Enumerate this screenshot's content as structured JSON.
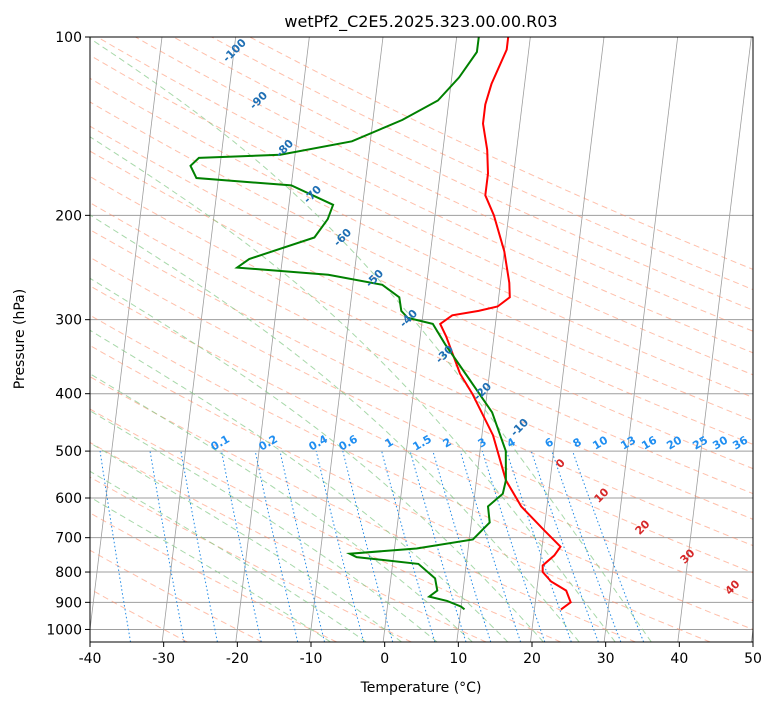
{
  "chart_data": {
    "type": "line",
    "chart_kind": "skew-T log-p diagram",
    "title": "wetPf2_C2E5.2025.323.00.00.R03",
    "xlabel": "Temperature (°C)",
    "ylabel": "Pressure (hPa)",
    "x_axis": {
      "range": [
        -40,
        50
      ],
      "ticks": [
        -40,
        -30,
        -20,
        -10,
        0,
        10,
        20,
        30,
        40,
        50
      ]
    },
    "y_axis": {
      "scale": "log",
      "range": [
        1050,
        100
      ],
      "ticks": [
        1000,
        900,
        800,
        700,
        600,
        500,
        400,
        300,
        200,
        100
      ]
    },
    "grid": true,
    "colors": {
      "temperature": "#ff0000",
      "dewpoint": "#008000",
      "isotherm": "#9e9e9e",
      "dry_adiabat": "#ff8a65",
      "moist_adiabat": "#81c784",
      "mixing_ratio": "#1e88e5",
      "grid": "#9e9e9e"
    },
    "series": [
      {
        "name": "Temperature",
        "points": [
          [
            23.6,
            925
          ],
          [
            24.8,
            900
          ],
          [
            24.0,
            860
          ],
          [
            21.8,
            830
          ],
          [
            20.5,
            800
          ],
          [
            20.4,
            780
          ],
          [
            21.8,
            750
          ],
          [
            22.5,
            725
          ],
          [
            20.0,
            680
          ],
          [
            16.5,
            620
          ],
          [
            14.0,
            560
          ],
          [
            11.5,
            470
          ],
          [
            8.0,
            400
          ],
          [
            6.0,
            370
          ],
          [
            3.5,
            320
          ],
          [
            2.5,
            305
          ],
          [
            4.0,
            295
          ],
          [
            7.5,
            290
          ],
          [
            10.0,
            285
          ],
          [
            11.5,
            275
          ],
          [
            11.2,
            260
          ],
          [
            10.0,
            230
          ],
          [
            8.0,
            200
          ],
          [
            6.5,
            185
          ],
          [
            6.5,
            170
          ],
          [
            6.0,
            155
          ],
          [
            5.0,
            140
          ],
          [
            5.0,
            130
          ],
          [
            5.5,
            120
          ],
          [
            7.0,
            105
          ],
          [
            7.0,
            100
          ]
        ]
      },
      {
        "name": "Dewpoint",
        "points": [
          [
            10.5,
            925
          ],
          [
            10.0,
            915
          ],
          [
            8.0,
            895
          ],
          [
            5.5,
            880
          ],
          [
            6.5,
            860
          ],
          [
            6.0,
            820
          ],
          [
            3.5,
            775
          ],
          [
            -5.0,
            755
          ],
          [
            -6.0,
            745
          ],
          [
            3.0,
            730
          ],
          [
            10.5,
            705
          ],
          [
            12.5,
            660
          ],
          [
            12.0,
            620
          ],
          [
            13.8,
            590
          ],
          [
            14.0,
            560
          ],
          [
            13.5,
            500
          ],
          [
            11.0,
            430
          ],
          [
            7.5,
            380
          ],
          [
            3.5,
            330
          ],
          [
            1.5,
            305
          ],
          [
            -2.0,
            298
          ],
          [
            -3.0,
            290
          ],
          [
            -3.5,
            275
          ],
          [
            -6.0,
            262
          ],
          [
            -13.5,
            252
          ],
          [
            -26.0,
            245
          ],
          [
            -24.5,
            237
          ],
          [
            -16.0,
            218
          ],
          [
            -14.5,
            203
          ],
          [
            -14.0,
            192
          ],
          [
            -20.0,
            178
          ],
          [
            -33.0,
            173
          ],
          [
            -34.0,
            165
          ],
          [
            -33.0,
            160
          ],
          [
            -22.0,
            158
          ],
          [
            -12.5,
            150
          ],
          [
            -6.0,
            138
          ],
          [
            -1.5,
            128
          ],
          [
            1.0,
            117
          ],
          [
            3.0,
            106
          ],
          [
            3.0,
            100
          ]
        ]
      }
    ],
    "background_lines": {
      "isotherms_c": [
        -110,
        -100,
        -90,
        -80,
        -70,
        -60,
        -50,
        -40,
        -30,
        -20,
        -10,
        0,
        10,
        20,
        30,
        40,
        50
      ],
      "dry_adiabats_c": [
        -30,
        -20,
        -10,
        0,
        10,
        20,
        30,
        40,
        50,
        60,
        70,
        80,
        90,
        100,
        110,
        120,
        130,
        140,
        150,
        160,
        170,
        180,
        190,
        200
      ],
      "moist_adiabats_c": [
        -10,
        -5,
        0,
        5,
        10,
        15,
        20,
        25,
        30,
        35
      ],
      "mixing_ratios_gkg": [
        "0.1",
        "0.2",
        "0.4",
        "0.6",
        "1",
        "1.5",
        "2",
        "3",
        "4",
        "6",
        "8",
        "10",
        "13",
        "16",
        "20",
        "25",
        "30",
        "36"
      ]
    },
    "annotations": {
      "dry_adiabat_labels": [
        "-100",
        "-90",
        "-80",
        "-70",
        "-60",
        "-50",
        "-40",
        "-30",
        "-20",
        "-10"
      ],
      "wetbulb_labels": [
        "0",
        "10",
        "20",
        "30",
        "40"
      ],
      "mixing_ratio_labels": [
        "0.1",
        "0.2",
        "0.4",
        "0.6",
        "1",
        "1.5",
        "2",
        "3",
        "4",
        "6",
        "8",
        "10",
        "13",
        "16",
        "20",
        "25",
        "30",
        "36"
      ]
    }
  }
}
